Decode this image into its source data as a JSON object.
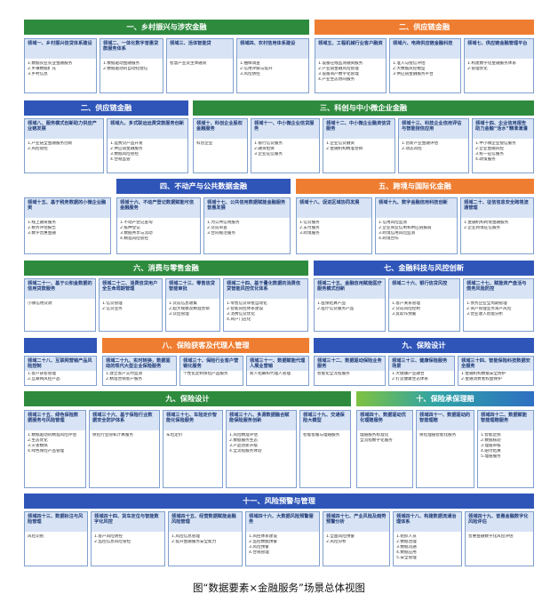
{
  "caption": "图“数据要素×金融服务”场景总体视图",
  "bands": [
    {
      "id": "b1",
      "label": "一、乡村振兴与涉农金融"
    },
    {
      "id": "b2",
      "label": "二、供应链金融"
    },
    {
      "id": "b3",
      "label": "二、供应链金融"
    },
    {
      "id": "b4",
      "label": "三、科创与中小微企业金融"
    },
    {
      "id": "b5",
      "label": "四、不动产与公共数据金融"
    },
    {
      "id": "b6",
      "label": "五、跨境与国际化金融"
    },
    {
      "id": "b7",
      "label": "六、消费与零售金融"
    },
    {
      "id": "b8",
      "label": "七、金融科技与风控创新"
    },
    {
      "id": "b9",
      "label": "八、保险获客及代理人管理"
    },
    {
      "id": "b10",
      "label": "九、保险设计"
    },
    {
      "id": "b11",
      "label": "九、保险设计"
    },
    {
      "id": "b12",
      "label": "十、保险承保理赔"
    },
    {
      "id": "b13",
      "label": "十一、风险预警与管理"
    }
  ],
  "cards": [
    {
      "title": "领域一、乡村振兴信贷体系建设",
      "lines": [
        "1.数据农业农业金融服务",
        "2.乡镇数据扩充",
        "3.乡村信息"
      ]
    },
    {
      "title": "领域二、一体化数字普惠贷款服务体系",
      "lines": [
        "1.数据驱动金融服务",
        "2.数据驱动的自动化授信"
      ]
    },
    {
      "title": "领域三、活体智能贷",
      "lines": [
        "智慧产业及主体融资"
      ]
    },
    {
      "title": "领域四、农村信用体系建设",
      "lines": [
        "1.抽样调查",
        "2.信用评级与提升",
        "3.风险防控"
      ]
    },
    {
      "title": "领域五、工程机械行业客户融资",
      "lines": [
        "1.设备在线监测融资服务",
        "2.产业链金融风险管理",
        "3.设备资产数字化管理",
        "4.产业生态协同服务"
      ]
    },
    {
      "title": "领域六、电商供应链金融科技",
      "lines": [
        "1.准入与授信评估",
        "2.大数据风控模型",
        "3.供应链金融服务平台"
      ]
    },
    {
      "title": "领域七、供应链金融管理平台",
      "lines": [
        "1.构建数字化金融服务体系",
        "2.管理优化"
      ]
    },
    {
      "title": "领域八、服务模式创新助力供应产业链发展",
      "lines": [
        "1.产业链全金融服务创新",
        "2.风控管控"
      ]
    },
    {
      "title": "领域九、多式联运运费贷款服务创新",
      "lines": [
        "1.运费贷产品开发",
        "2.供应链金融服务",
        "3.数据风险管控",
        "4.合规监管"
      ]
    },
    {
      "title": "领域十、科创企业股权金融服务",
      "lines": [
        "科创企业"
      ]
    },
    {
      "title": "领域十一、中小微企业信贷服务",
      "lines": [
        "1.银行信贷服务",
        "2.融资担保",
        "3.企业征信服务"
      ]
    },
    {
      "title": "领域十二、中小微企业融资信贷服务",
      "lines": [
        "1.企业信贷融资",
        "2.金融机构精准营销"
      ]
    },
    {
      "title": "领域十三、科技企业信用评估与智能授信应用",
      "lines": [
        "1.创新产业金融评估",
        "2.动态风控"
      ]
    },
    {
      "title": "领域十四、企业信用报告助力金融“活水”精准滴灌",
      "lines": [
        "1.中小微企业授信服务",
        "2.企业金融风控",
        "3.统一征信服务",
        "4.政策服务"
      ]
    },
    {
      "title": "领域十五、基于税务数据的小微企业融资",
      "lines": [
        "1.线上融资服务",
        "2.税务评估报告",
        "3.数字普惠金融"
      ]
    },
    {
      "title": "领域十六、不动产登记数据赋能可信金融服务",
      "lines": [
        "1.不动产登记查询",
        "2.抵押登记",
        "3.数据共享与流动",
        "4.精准风险管控"
      ]
    },
    {
      "title": "领域十七、公共信用数据赋能金融服务普惠发展",
      "lines": [
        "1.为公共信用服务",
        "2.贷前审查",
        "3.合同规范服务"
      ]
    },
    {
      "title": "领域十八、促进区域协同发展",
      "lines": [
        "1.信贷服务",
        "2.支付服务",
        "3.跨境服务"
      ]
    },
    {
      "title": "领域十九、数字金融信用科技创新",
      "lines": [
        "1.信用风险监测",
        "2.企业商业信用和供应链报道",
        "3.跨境信用风险监测",
        "4.跨境合作"
      ]
    },
    {
      "title": "领域二十、征信信息安全跨境流通管理",
      "lines": [
        "1.金融机构跨境金融服务",
        "2.企业跨境征信服务"
      ]
    },
    {
      "title": "领域二十一、基于公积金数据的信用贷款服务",
      "lines": [
        "小微信用贷款"
      ]
    },
    {
      "title": "领域二十二、消费信贷用户全生命周期管理",
      "lines": [
        "1.信贷管理",
        "2.信贷业务"
      ]
    },
    {
      "title": "领域二十三、零售信贷智能审批",
      "lines": [
        "1.贷前信息收集",
        "2.超大规模及精准营销",
        "3.贷后管理"
      ]
    },
    {
      "title": "领域二十四、基于量化数据的消费信贷智能风控优化体系",
      "lines": [
        "1.零售信贷审批自动化",
        "2.智能风控体系建设",
        "3.消费信贷优化",
        "4.商户门店化"
      ]
    },
    {
      "title": "领域二十五、金融信用赋能医疗服务模式创新",
      "lines": [
        "1.医保结算产品",
        "2.医疗信贷服务产品"
      ]
    },
    {
      "title": "领域二十六、银行信贷风控",
      "lines": [
        "1.客户关系管理",
        "2.贷前风险控制",
        "3.反欺诈预警"
      ]
    },
    {
      "title": "领域二十七、赋能资产盘活与债务风险防控",
      "lines": [
        "1.债务企业全周期管理",
        "2.资产管理业务资产风险",
        "3.营业收入智能分析"
      ]
    },
    {
      "title": "领域二十八、互联网营销产品风险控制",
      "lines": [
        "1.客户获客管理",
        "2.互联网风控产品"
      ]
    },
    {
      "title": "领域二十九、实时转换，数据驱动的现代大型企业保险服务",
      "lines": [
        "1.建立客户实时监测",
        "2.精准营销客户服务",
        "3.客户风险防控",
        "4.企业保险服务"
      ]
    },
    {
      "title": "领域三十、保险行业客户营销化服务",
      "lines": [
        "个性化定制保险产品服务"
      ]
    },
    {
      "title": "领域三十一、数据赋能代理人展业营销",
      "lines": [
        "新人招募和代理人管理"
      ]
    },
    {
      "title": "领域三十二、数据驱动保险业务服务",
      "lines": [
        "智能化全流程服务"
      ]
    },
    {
      "title": "领域三十三、健康保险服务场景",
      "lines": [
        "1.大健康产业融合",
        "2.打造健康生态体系"
      ]
    },
    {
      "title": "领域三十四、智能保险科技数据安全服务",
      "lines": [
        "1.金融机构数据安全防护",
        "2.金融消费者权益保护"
      ]
    },
    {
      "title": "领域三十五、绿色保险数据服务与风险管理",
      "lines": [
        "1.数据驱动的精准风险评估",
        "2.生态优化",
        "3.灾害模拟",
        "4.绿色保险产品管理"
      ]
    },
    {
      "title": "领域三十六、基于保险行业数据安全防护体系",
      "lines": [
        "保险行业隐私计算服务"
      ]
    },
    {
      "title": "领域三十七、车险定价智能化保险服务",
      "lines": [
        "车险定价"
      ]
    },
    {
      "title": "领域三十八、多源数据融合赋能保险服务创新",
      "lines": [
        "1.风险精准评估",
        "2.数据服务生态",
        "3.产品创新升级",
        "4.全流程服务体验"
      ]
    },
    {
      "title": "领域三十九、交通保险大模型",
      "lines": [
        "智能客服与理赔服务"
      ]
    },
    {
      "title": "领域四十、数据驱动优化理赔服务",
      "lines": [
        "理赔服务标准化",
        "全流程数字化服务"
      ]
    },
    {
      "title": "领域四十一、数据驱动的智能理赔",
      "lines": [
        "保险理赔智能化服务"
      ]
    },
    {
      "title": "领域四十二、数据赋能智能理赔服务",
      "lines": [
        "1.智能定损",
        "2.数据核验",
        "3.理赔审核",
        "4.赔付结算",
        "5.理赔服务"
      ]
    },
    {
      "title": "领域四十三、数据标注与风险管理",
      "lines": [
        "风险识别"
      ]
    },
    {
      "title": "领域四十四、货车定位与智能数字化风控",
      "lines": [
        "1.客户风险防控",
        "2.监控信息风险管控"
      ]
    },
    {
      "title": "领域四十五、经营数据赋能金融风险管理",
      "lines": [
        "1.风险信息管理",
        "2.提升金融服务安全能力"
      ]
    },
    {
      "title": "领域四十六、大数据风险预警服务",
      "lines": [
        "1.风控体系建设",
        "2.监控数据预警",
        "3.风险预警",
        "4.合规管理"
      ]
    },
    {
      "title": "领域四十七、产业风险及趋势预警分析",
      "lines": [
        "1.全面风险预警",
        "2.风险分析"
      ]
    },
    {
      "title": "领域四十八、构建数据流通治理体系",
      "lines": [
        "1.组织人员",
        "2.数据治理",
        "3.数据流通",
        "4.数据应用",
        "5.安全管理"
      ]
    },
    {
      "title": "领域四十九、普惠金融数字化风险评估",
      "lines": [
        "普惠金融数字化风险评估"
      ]
    }
  ]
}
